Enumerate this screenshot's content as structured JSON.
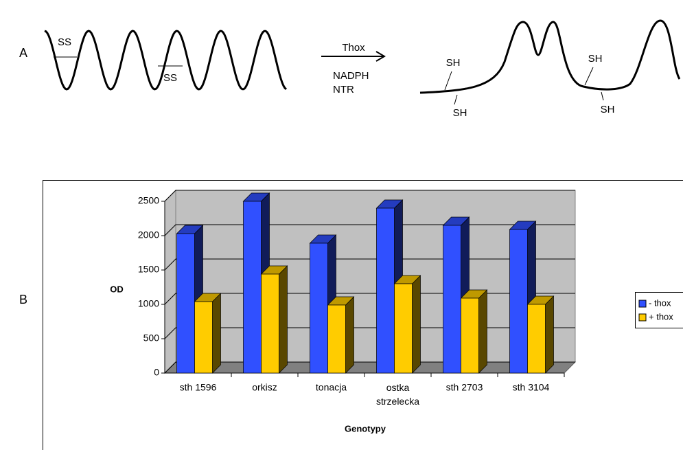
{
  "panel_a": {
    "label": "A",
    "bond_labels": [
      "SS",
      "SS"
    ],
    "reagent": "Thox",
    "cofactors": [
      "NADPH",
      "NTR"
    ],
    "thiol_labels": [
      "SH",
      "SH",
      "SH",
      "SH"
    ]
  },
  "panel_b": {
    "label": "B"
  },
  "chart_data": {
    "type": "bar3d",
    "y_label": "OD",
    "x_label": "Genotypy",
    "categories": [
      "sth 1596",
      "orkisz",
      "tonacja",
      "ostka strzelecka",
      "sth 2703",
      "sth 3104"
    ],
    "series": [
      {
        "name": "- thox",
        "color": "#3050ff",
        "values": [
          2030,
          2500,
          1890,
          2400,
          2150,
          2090
        ]
      },
      {
        "name": "+ thox",
        "color": "#ffcc00",
        "values": [
          1040,
          1440,
          990,
          1300,
          1090,
          1000
        ]
      }
    ],
    "ylim": [
      0,
      2500
    ],
    "yticks": [
      0,
      500,
      1000,
      1500,
      2000,
      2500
    ],
    "grid": true,
    "legend": "right"
  }
}
